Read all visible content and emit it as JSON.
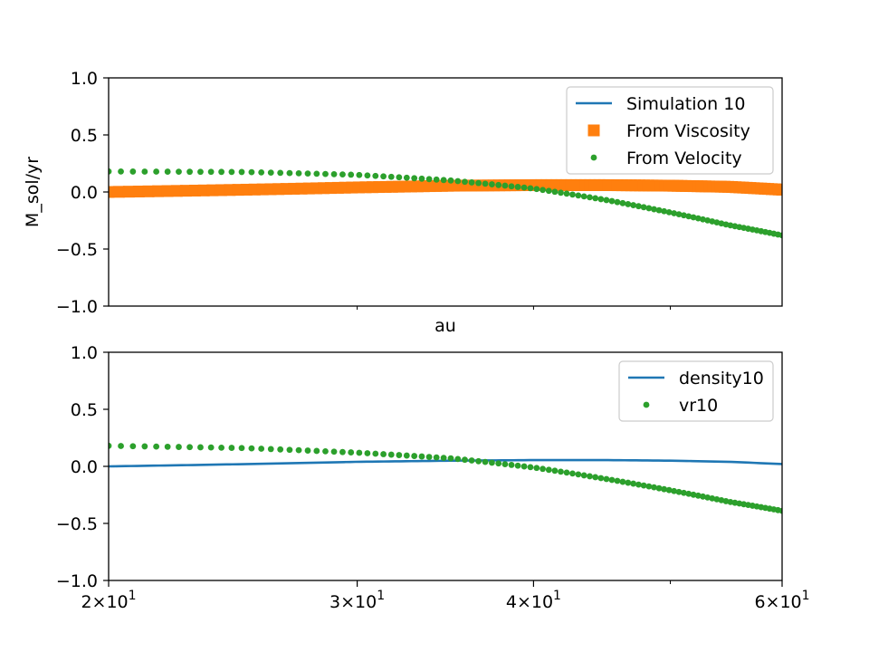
{
  "chart_data": [
    {
      "type": "scatter",
      "xscale": "log",
      "xlim": [
        20,
        60
      ],
      "ylim": [
        -1.0,
        1.0
      ],
      "xlabel": "au",
      "ylabel": "M_sol/yr",
      "yticks": [
        {
          "value": -1.0,
          "label": "−1.0"
        },
        {
          "value": -0.5,
          "label": "−0.5"
        },
        {
          "value": 0.0,
          "label": "0.0"
        },
        {
          "value": 0.5,
          "label": "0.5"
        },
        {
          "value": 1.0,
          "label": "1.0"
        }
      ],
      "xticks_minor": [
        30,
        40,
        50
      ],
      "legend": {
        "placement": "upper-right"
      },
      "series": [
        {
          "name": "Simulation 10",
          "style": "line",
          "color": "#1f77b4",
          "x": [
            20,
            30,
            35,
            40,
            45,
            50,
            55,
            60
          ],
          "y": [
            0.0,
            0.04,
            0.055,
            0.06,
            0.06,
            0.055,
            0.045,
            0.02
          ]
        },
        {
          "name": "From Viscosity",
          "style": "square",
          "color": "#ff7f0e",
          "x_range": [
            20,
            60
          ],
          "count": 120,
          "x": [
            20,
            25,
            30,
            35,
            40,
            45,
            50,
            55,
            60
          ],
          "y": [
            0.0,
            0.02,
            0.04,
            0.055,
            0.06,
            0.06,
            0.055,
            0.045,
            0.02
          ]
        },
        {
          "name": "From Velocity",
          "style": "dot",
          "color": "#2ca02c",
          "x_range": [
            20,
            60
          ],
          "count": 100,
          "x": [
            20,
            25,
            30,
            35,
            40,
            45,
            50,
            55,
            60
          ],
          "y": [
            0.18,
            0.175,
            0.15,
            0.1,
            0.03,
            -0.07,
            -0.18,
            -0.29,
            -0.38
          ]
        }
      ]
    },
    {
      "type": "scatter",
      "xscale": "log",
      "xlim": [
        20,
        60
      ],
      "ylim": [
        -1.0,
        1.0
      ],
      "xlabel": "",
      "ylabel": "",
      "yticks": [
        {
          "value": -1.0,
          "label": "−1.0"
        },
        {
          "value": -0.5,
          "label": "−0.5"
        },
        {
          "value": 0.0,
          "label": "0.0"
        },
        {
          "value": 0.5,
          "label": "0.5"
        },
        {
          "value": 1.0,
          "label": "1.0"
        }
      ],
      "xticks": [
        {
          "value": 20,
          "mantissa": "2",
          "base": "10",
          "exp": "1"
        },
        {
          "value": 30,
          "mantissa": "3",
          "base": "10",
          "exp": "1"
        },
        {
          "value": 40,
          "mantissa": "4",
          "base": "10",
          "exp": "1"
        },
        {
          "value": 60,
          "mantissa": "6",
          "base": "10",
          "exp": "1"
        }
      ],
      "xticks_minor": [
        50
      ],
      "legend": {
        "placement": "upper-right"
      },
      "series": [
        {
          "name": "density10",
          "style": "line",
          "color": "#1f77b4",
          "x": [
            20,
            25,
            30,
            35,
            40,
            45,
            50,
            55,
            60
          ],
          "y": [
            0.0,
            0.02,
            0.04,
            0.05,
            0.055,
            0.055,
            0.05,
            0.04,
            0.02
          ]
        },
        {
          "name": "vr10",
          "style": "dot",
          "color": "#2ca02c",
          "x_range": [
            20,
            60
          ],
          "count": 100,
          "x": [
            20,
            25,
            30,
            35,
            40,
            45,
            50,
            55,
            60
          ],
          "y": [
            0.18,
            0.16,
            0.12,
            0.07,
            -0.01,
            -0.11,
            -0.21,
            -0.31,
            -0.39
          ]
        }
      ]
    }
  ]
}
